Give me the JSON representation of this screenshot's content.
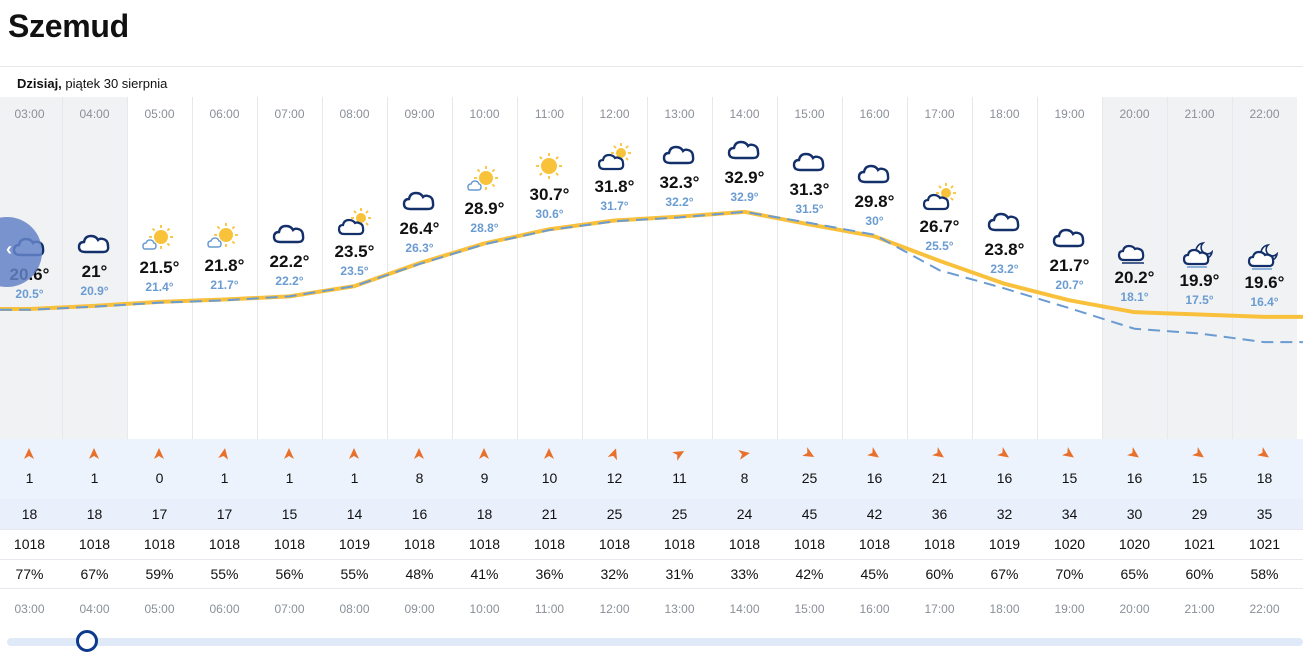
{
  "location": "Szemud",
  "day": {
    "label": "Dzisiaj,",
    "date": "piątek 30 sierpnia"
  },
  "colors": {
    "accent": "#0c3a8c",
    "temp_line": "#f9c03c",
    "feel_line": "#6a9bd1",
    "wind_arrow": "#e8702a"
  },
  "hours": [
    {
      "time": "03:00",
      "icon": "cloud-icon",
      "temp": "20.6°",
      "feel": "20.5°",
      "t": 20.6,
      "f": 20.5,
      "wind_dir": 0,
      "wind": "1",
      "gust": "18",
      "pressure": "1018",
      "humidity": "77%",
      "night": true
    },
    {
      "time": "04:00",
      "icon": "cloud-icon",
      "temp": "21°",
      "feel": "20.9°",
      "t": 21.0,
      "f": 20.9,
      "wind_dir": 0,
      "wind": "1",
      "gust": "18",
      "pressure": "1018",
      "humidity": "67%",
      "night": true
    },
    {
      "time": "05:00",
      "icon": "sun-cloud-icon",
      "temp": "21.5°",
      "feel": "21.4°",
      "t": 21.5,
      "f": 21.4,
      "wind_dir": 0,
      "wind": "0",
      "gust": "17",
      "pressure": "1018",
      "humidity": "59%",
      "night": false
    },
    {
      "time": "06:00",
      "icon": "sun-cloud-icon",
      "temp": "21.8°",
      "feel": "21.7°",
      "t": 21.8,
      "f": 21.7,
      "wind_dir": 10,
      "wind": "1",
      "gust": "17",
      "pressure": "1018",
      "humidity": "55%",
      "night": false
    },
    {
      "time": "07:00",
      "icon": "cloud-icon",
      "temp": "22.2°",
      "feel": "22.2°",
      "t": 22.2,
      "f": 22.2,
      "wind_dir": 0,
      "wind": "1",
      "gust": "15",
      "pressure": "1018",
      "humidity": "56%",
      "night": false
    },
    {
      "time": "08:00",
      "icon": "cloud-sun-icon",
      "temp": "23.5°",
      "feel": "23.5°",
      "t": 23.5,
      "f": 23.5,
      "wind_dir": 0,
      "wind": "1",
      "gust": "14",
      "pressure": "1019",
      "humidity": "55%",
      "night": false
    },
    {
      "time": "09:00",
      "icon": "cloud-icon",
      "temp": "26.4°",
      "feel": "26.3°",
      "t": 26.4,
      "f": 26.3,
      "wind_dir": 0,
      "wind": "8",
      "gust": "16",
      "pressure": "1018",
      "humidity": "48%",
      "night": false
    },
    {
      "time": "10:00",
      "icon": "sun-cloud-icon",
      "temp": "28.9°",
      "feel": "28.8°",
      "t": 28.9,
      "f": 28.8,
      "wind_dir": 0,
      "wind": "9",
      "gust": "18",
      "pressure": "1018",
      "humidity": "41%",
      "night": false
    },
    {
      "time": "11:00",
      "icon": "sun-icon",
      "temp": "30.7°",
      "feel": "30.6°",
      "t": 30.7,
      "f": 30.6,
      "wind_dir": 0,
      "wind": "10",
      "gust": "21",
      "pressure": "1018",
      "humidity": "36%",
      "night": false
    },
    {
      "time": "12:00",
      "icon": "cloud-sun-icon",
      "temp": "31.8°",
      "feel": "31.7°",
      "t": 31.8,
      "f": 31.7,
      "wind_dir": 20,
      "wind": "12",
      "gust": "25",
      "pressure": "1018",
      "humidity": "32%",
      "night": false
    },
    {
      "time": "13:00",
      "icon": "cloud-icon",
      "temp": "32.3°",
      "feel": "32.2°",
      "t": 32.3,
      "f": 32.2,
      "wind_dir": 60,
      "wind": "11",
      "gust": "25",
      "pressure": "1018",
      "humidity": "31%",
      "night": false
    },
    {
      "time": "14:00",
      "icon": "cloud-icon",
      "temp": "32.9°",
      "feel": "32.9°",
      "t": 32.9,
      "f": 32.9,
      "wind_dir": 80,
      "wind": "8",
      "gust": "24",
      "pressure": "1018",
      "humidity": "33%",
      "night": false
    },
    {
      "time": "15:00",
      "icon": "cloud-icon",
      "temp": "31.3°",
      "feel": "31.5°",
      "t": 31.3,
      "f": 31.5,
      "wind_dir": 120,
      "wind": "25",
      "gust": "45",
      "pressure": "1018",
      "humidity": "42%",
      "night": false
    },
    {
      "time": "16:00",
      "icon": "cloud-icon",
      "temp": "29.8°",
      "feel": "30°",
      "t": 29.8,
      "f": 30.0,
      "wind_dir": 125,
      "wind": "16",
      "gust": "42",
      "pressure": "1018",
      "humidity": "45%",
      "night": false
    },
    {
      "time": "17:00",
      "icon": "cloud-sun-icon",
      "temp": "26.7°",
      "feel": "25.5°",
      "t": 26.7,
      "f": 25.5,
      "wind_dir": 125,
      "wind": "21",
      "gust": "36",
      "pressure": "1018",
      "humidity": "60%",
      "night": false
    },
    {
      "time": "18:00",
      "icon": "cloud-icon",
      "temp": "23.8°",
      "feel": "23.2°",
      "t": 23.8,
      "f": 23.2,
      "wind_dir": 125,
      "wind": "16",
      "gust": "32",
      "pressure": "1019",
      "humidity": "67%",
      "night": false
    },
    {
      "time": "19:00",
      "icon": "cloud-icon",
      "temp": "21.7°",
      "feel": "20.7°",
      "t": 21.7,
      "f": 20.7,
      "wind_dir": 125,
      "wind": "15",
      "gust": "34",
      "pressure": "1020",
      "humidity": "70%",
      "night": false
    },
    {
      "time": "20:00",
      "icon": "cloud-night-icon",
      "temp": "20.2°",
      "feel": "18.1°",
      "t": 20.2,
      "f": 18.1,
      "wind_dir": 125,
      "wind": "16",
      "gust": "30",
      "pressure": "1020",
      "humidity": "65%",
      "night": true
    },
    {
      "time": "21:00",
      "icon": "cloud-moon-icon",
      "temp": "19.9°",
      "feel": "17.5°",
      "t": 19.9,
      "f": 17.5,
      "wind_dir": 125,
      "wind": "15",
      "gust": "29",
      "pressure": "1021",
      "humidity": "60%",
      "night": true
    },
    {
      "time": "22:00",
      "icon": "cloud-moon-icon",
      "temp": "19.6°",
      "feel": "16.4°",
      "t": 19.6,
      "f": 16.4,
      "wind_dir": 125,
      "wind": "18",
      "gust": "35",
      "pressure": "1021",
      "humidity": "58%",
      "night": true
    }
  ],
  "slider": {
    "position": 0.06
  }
}
